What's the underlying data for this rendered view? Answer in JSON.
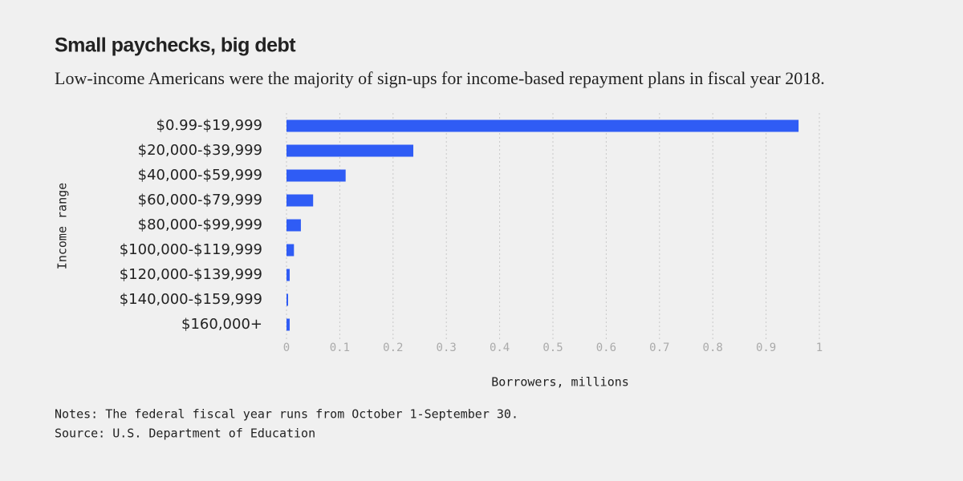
{
  "chart_data": {
    "type": "bar",
    "orientation": "horizontal",
    "title": "Small paychecks, big debt",
    "subtitle": "Low-income Americans were the majority of sign-ups for income-based repayment plans in fiscal year 2018.",
    "categories": [
      "$0.99-$19,999",
      "$20,000-$39,999",
      "$40,000-$59,999",
      "$60,000-$79,999",
      "$80,000-$99,999",
      "$100,000-$119,999",
      "$120,000-$139,999",
      "$140,000-$159,999",
      "$160,000+"
    ],
    "values": [
      0.961,
      0.238,
      0.111,
      0.05,
      0.027,
      0.014,
      0.006,
      0.003,
      0.006
    ],
    "color": "#2f5cf5",
    "xlim": [
      0,
      1
    ],
    "xticks": [
      0,
      0.1,
      0.2,
      0.3,
      0.4,
      0.5,
      0.6,
      0.7,
      0.8,
      0.9,
      1
    ],
    "grid": true,
    "x_label": "Borrowers, millions",
    "y_label": "Income range",
    "notes": "Notes: The federal fiscal year runs from October 1-September 30.",
    "source": "Source: U.S. Department of Education"
  }
}
